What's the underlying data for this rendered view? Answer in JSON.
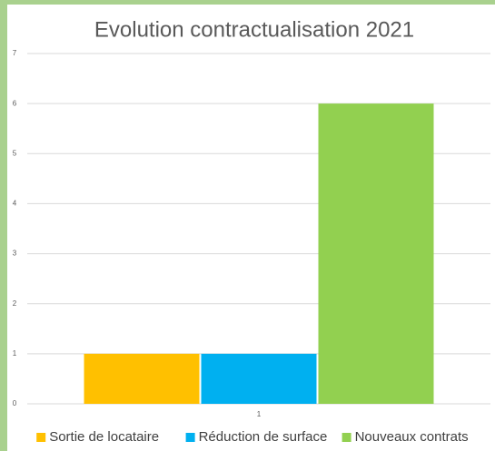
{
  "chart_data": {
    "type": "bar",
    "title": "Evolution contractualisation 2021",
    "categories": [
      "1"
    ],
    "series": [
      {
        "name": "Sortie de locataire",
        "color": "#ffc000",
        "values": [
          1
        ]
      },
      {
        "name": "Réduction de surface",
        "color": "#00b0f0",
        "values": [
          1
        ]
      },
      {
        "name": "Nouveaux contrats",
        "color": "#92d050",
        "values": [
          6
        ]
      }
    ],
    "ylim": [
      0,
      7
    ],
    "yticks": [
      0,
      1,
      2,
      3,
      4,
      5,
      6,
      7
    ],
    "grid": true,
    "legend": "bottom"
  }
}
